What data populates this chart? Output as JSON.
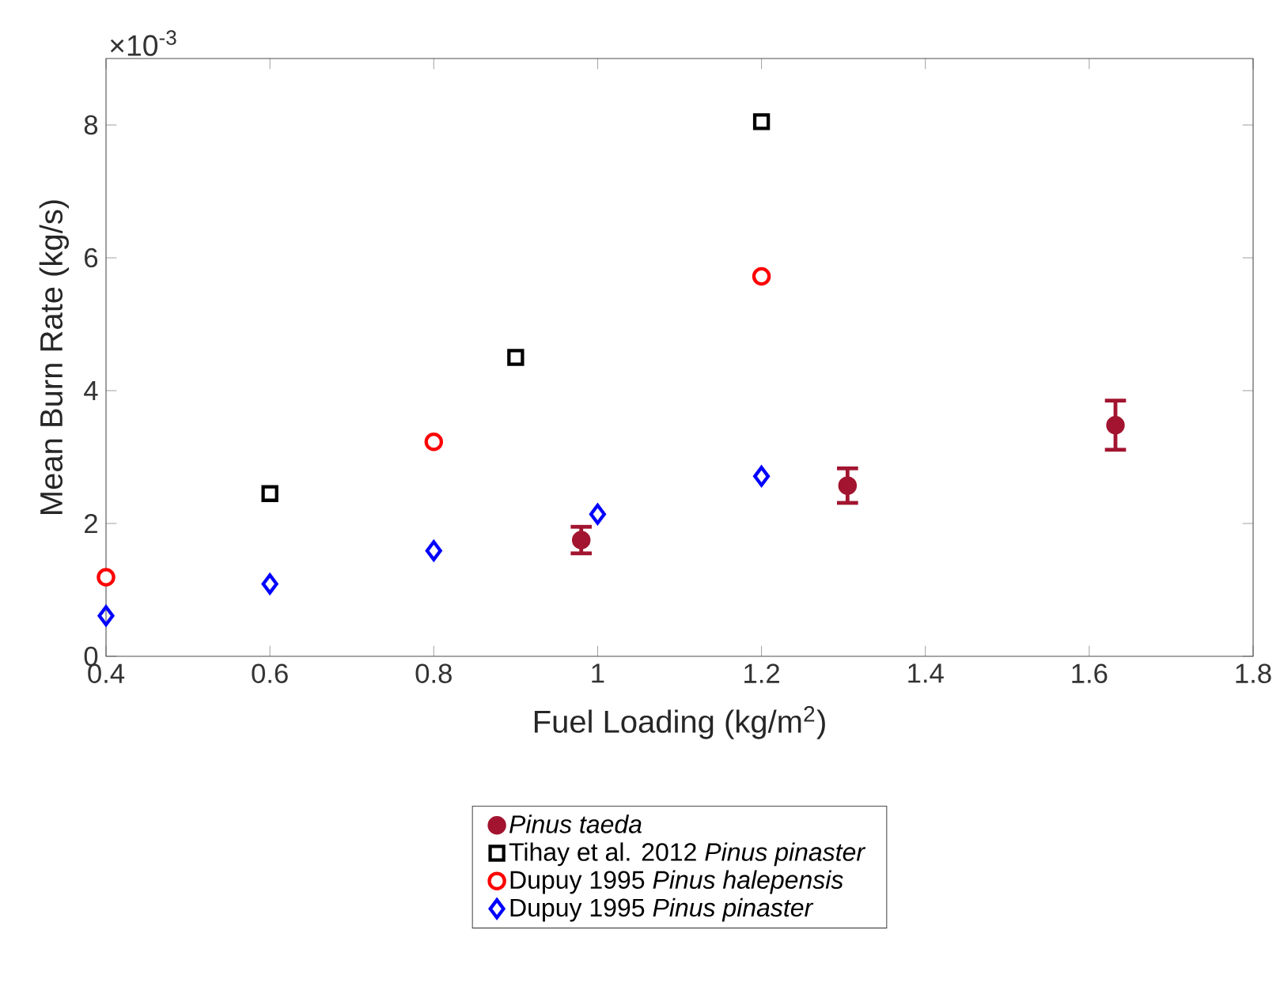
{
  "chart_data": {
    "type": "scatter",
    "xlabel": "Fuel Loading (kg/m$^{2}$)",
    "ylabel": "Mean Burn Rate (kg/s)",
    "annotations": [
      "×10$^{-3}$"
    ],
    "xlim": [
      0.4,
      1.8
    ],
    "ylim": [
      0,
      9
    ],
    "xticks": [
      0.4,
      0.6,
      0.8,
      1,
      1.2,
      1.4,
      1.6,
      1.8
    ],
    "yticks": [
      0,
      2,
      4,
      6,
      8
    ],
    "grid": false,
    "legend": "bottom",
    "series": [
      {
        "name": "*Pinus taeda*",
        "color": "#a2142f",
        "marker": "circle",
        "x": [
          0.98,
          1.305,
          1.632
        ],
        "values": [
          1.75,
          2.57,
          3.48
        ],
        "errors": [
          0.2,
          0.26,
          0.37
        ]
      },
      {
        "name": "Tihay et al. 2012 *Pinus pinaster*",
        "color": "#000000",
        "marker": "square",
        "x": [
          0.6,
          0.9,
          1.2
        ],
        "values": [
          2.45,
          4.5,
          8.05
        ]
      },
      {
        "name": "Dupuy 1995 *Pinus halepensis*",
        "color": "#ff0000",
        "marker": "circle",
        "x": [
          0.4,
          0.8,
          1.2
        ],
        "values": [
          1.19,
          3.23,
          5.72
        ]
      },
      {
        "name": "Dupuy 1995 *Pinus pinaster*",
        "color": "#0000ff",
        "marker": "diamond",
        "x": [
          0.4,
          0.6,
          0.8,
          1.0,
          1.2
        ],
        "values": [
          0.61,
          1.09,
          1.59,
          2.14,
          2.71
        ]
      }
    ]
  }
}
